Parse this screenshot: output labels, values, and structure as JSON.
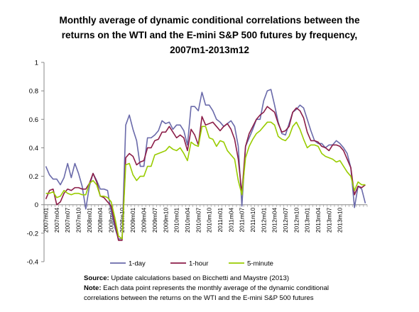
{
  "chart_data": {
    "type": "line",
    "title_lines": [
      "Monthly average of dynamic conditional correlations between the",
      "returns on the WTI and the E-mini S&P 500 futures by frequency,",
      "2007m1-2013m12"
    ],
    "xlabel": "",
    "ylabel": "",
    "ylim": [
      -0.4,
      1
    ],
    "yticks": [
      "-0.4",
      "-0.2",
      "0",
      "0.2",
      "0.4",
      "0.6",
      "0.8",
      "1"
    ],
    "xtick_labels": [
      "2007m01",
      "2007m04",
      "2007m07",
      "2007m10",
      "2008m01",
      "2008m04",
      "2008m07",
      "2008m10",
      "2009m01",
      "2009m04",
      "2009m07",
      "2009m10",
      "2010m01",
      "2010m04",
      "2010m07",
      "2010m10",
      "2011m01",
      "2011m04",
      "2011m07",
      "2011m10",
      "2012m01",
      "2012m04",
      "2012m07",
      "2012m10",
      "2013m01",
      "2013m04",
      "2013m07",
      "2013m10"
    ],
    "grid": false,
    "legend_position": "bottom",
    "series": [
      {
        "name": "1-day",
        "color": "#6a6aaa",
        "values": [
          0.27,
          0.21,
          0.18,
          0.18,
          0.14,
          0.19,
          0.29,
          0.19,
          0.29,
          0.22,
          0.13,
          -0.03,
          0.13,
          0.22,
          0.17,
          0.11,
          0.11,
          0.1,
          -0.05,
          -0.16,
          -0.24,
          -0.24,
          0.56,
          0.63,
          0.53,
          0.45,
          0.27,
          0.27,
          0.47,
          0.47,
          0.49,
          0.52,
          0.59,
          0.57,
          0.58,
          0.53,
          0.56,
          0.56,
          0.52,
          0.42,
          0.69,
          0.69,
          0.66,
          0.79,
          0.7,
          0.7,
          0.66,
          0.6,
          0.58,
          0.55,
          0.57,
          0.59,
          0.55,
          0.41,
          -0.01,
          0.41,
          0.47,
          0.53,
          0.6,
          0.6,
          0.73,
          0.8,
          0.81,
          0.7,
          0.58,
          0.5,
          0.49,
          0.57,
          0.65,
          0.67,
          0.7,
          0.68,
          0.6,
          0.52,
          0.45,
          0.43,
          0.43,
          0.4,
          0.42,
          0.42,
          0.45,
          0.43,
          0.4,
          0.36,
          0.26,
          -0.02,
          0.13,
          0.11,
          0.01
        ]
      },
      {
        "name": "1-hour",
        "color": "#8b1d48",
        "values": [
          0.04,
          0.1,
          0.11,
          0.0,
          0.02,
          0.08,
          0.11,
          0.1,
          0.12,
          0.12,
          0.11,
          0.11,
          0.15,
          0.22,
          0.16,
          0.06,
          0.05,
          0.02,
          -0.01,
          -0.13,
          -0.25,
          -0.25,
          0.33,
          0.36,
          0.34,
          0.28,
          0.3,
          0.31,
          0.4,
          0.4,
          0.45,
          0.46,
          0.51,
          0.51,
          0.55,
          0.51,
          0.47,
          0.49,
          0.47,
          0.38,
          0.53,
          0.49,
          0.42,
          0.62,
          0.56,
          0.57,
          0.58,
          0.55,
          0.52,
          0.55,
          0.57,
          0.53,
          0.46,
          0.32,
          0.08,
          0.41,
          0.5,
          0.55,
          0.6,
          0.63,
          0.65,
          0.69,
          0.67,
          0.65,
          0.57,
          0.51,
          0.52,
          0.55,
          0.65,
          0.68,
          0.66,
          0.61,
          0.51,
          0.45,
          0.45,
          0.44,
          0.41,
          0.4,
          0.38,
          0.42,
          0.42,
          0.41,
          0.38,
          0.32,
          0.26,
          0.07,
          0.13,
          0.12,
          0.14
        ]
      },
      {
        "name": "5-minute",
        "color": "#99cc00",
        "values": [
          0.08,
          0.08,
          0.09,
          0.05,
          0.06,
          0.1,
          0.08,
          0.07,
          0.08,
          0.08,
          0.07,
          0.07,
          0.15,
          0.17,
          0.14,
          0.06,
          0.06,
          0.05,
          0.02,
          -0.09,
          -0.22,
          -0.24,
          0.28,
          0.29,
          0.21,
          0.17,
          0.2,
          0.2,
          0.27,
          0.27,
          0.35,
          0.36,
          0.37,
          0.38,
          0.41,
          0.39,
          0.38,
          0.4,
          0.36,
          0.31,
          0.44,
          0.42,
          0.41,
          0.55,
          0.55,
          0.47,
          0.46,
          0.41,
          0.45,
          0.44,
          0.38,
          0.35,
          0.32,
          0.17,
          0.07,
          0.33,
          0.41,
          0.46,
          0.5,
          0.52,
          0.55,
          0.58,
          0.58,
          0.56,
          0.48,
          0.46,
          0.45,
          0.48,
          0.55,
          0.58,
          0.53,
          0.46,
          0.4,
          0.42,
          0.42,
          0.41,
          0.36,
          0.34,
          0.33,
          0.32,
          0.3,
          0.31,
          0.27,
          0.23,
          0.2,
          0.1,
          0.16,
          0.14,
          0.14
        ]
      }
    ]
  },
  "notes": {
    "source_label": "Source:",
    "source_text": " Update calculations based on Bicchetti and Maystre (2013)",
    "note_label": "Note:",
    "note_text_1": " Each data point represents the monthly average of the dynamic conditional",
    "note_text_2": "correlations between the returns on the WTI and the E-mini S&P 500 futures"
  }
}
